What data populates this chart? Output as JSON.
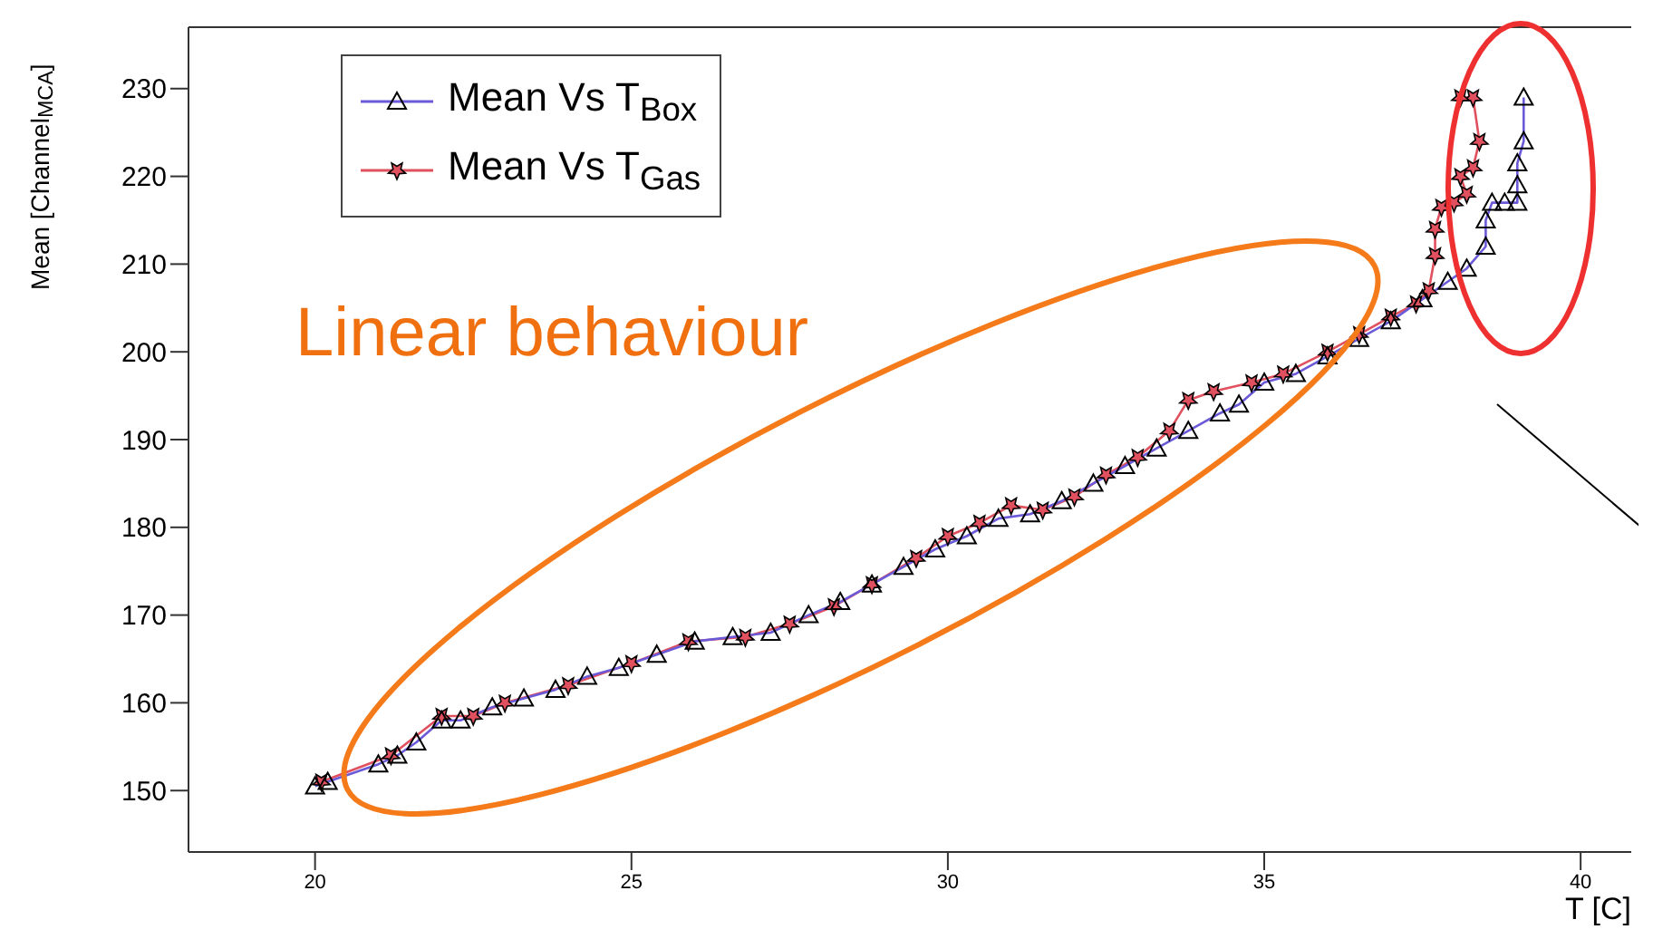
{
  "chart_data": {
    "type": "line",
    "xlabel": "T [C]",
    "ylabel": "Mean [Channel$_{MCA}$]",
    "xlim": [
      18,
      40.8
    ],
    "ylim": [
      143,
      237
    ],
    "xticks": [
      20,
      25,
      30,
      35,
      40
    ],
    "yticks": [
      150,
      160,
      170,
      180,
      190,
      200,
      210,
      220,
      230
    ],
    "legend": "top left",
    "annotations": [
      "Linear behaviour"
    ],
    "series": [
      {
        "name": "Mean Vs T$_{Box}$",
        "color": "#6a5ad8",
        "marker": "triangle",
        "x": [
          20.0,
          20.2,
          21.0,
          21.3,
          21.6,
          22.0,
          22.3,
          22.8,
          23.3,
          23.8,
          24.3,
          24.8,
          25.4,
          26.0,
          26.6,
          27.2,
          27.8,
          28.3,
          28.8,
          29.3,
          29.8,
          30.3,
          30.8,
          31.3,
          31.8,
          32.3,
          32.8,
          33.3,
          33.8,
          34.3,
          34.6,
          35.0,
          35.5,
          36.0,
          36.5,
          37.0,
          37.5,
          37.9,
          38.2,
          38.5,
          38.5,
          38.6,
          38.8,
          39.0,
          39.0,
          39.0,
          39.1,
          39.1
        ],
        "values": [
          150.5,
          151,
          153,
          154,
          155.5,
          158,
          158,
          159.5,
          160.5,
          161.5,
          163,
          164,
          165.5,
          167,
          167.5,
          168,
          170,
          171.5,
          173.5,
          175.5,
          177.5,
          179,
          181,
          181.5,
          183,
          185,
          187,
          189,
          191,
          193,
          194,
          196.5,
          197.5,
          199.5,
          201.5,
          203.5,
          206,
          208,
          209.5,
          212,
          215,
          217,
          217,
          217,
          219,
          221.5,
          224,
          229
        ]
      },
      {
        "name": "Mean Vs T$_{Gas}$",
        "color": "#e0505e",
        "marker": "star",
        "x": [
          20.1,
          21.2,
          22.0,
          22.5,
          23.0,
          24.0,
          25.0,
          25.9,
          26.8,
          27.5,
          28.2,
          28.8,
          29.5,
          30.0,
          30.5,
          31.0,
          31.5,
          32.0,
          32.5,
          33.0,
          33.5,
          33.8,
          34.2,
          34.8,
          35.3,
          36.0,
          36.5,
          37.0,
          37.4,
          37.6,
          37.7,
          37.7,
          37.8,
          38.0,
          38.2,
          38.1,
          38.3,
          38.4,
          38.3,
          38.1
        ],
        "values": [
          151,
          154,
          158.5,
          158.5,
          160,
          162,
          164.5,
          167,
          167.5,
          169,
          171,
          173.5,
          176.5,
          179,
          180.5,
          182.5,
          182,
          183.5,
          186,
          188,
          191,
          194.5,
          195.5,
          196.5,
          197.5,
          200,
          202,
          204,
          205.5,
          207,
          211,
          214,
          216.5,
          217,
          218,
          220,
          221,
          224,
          229,
          229
        ]
      }
    ]
  }
}
